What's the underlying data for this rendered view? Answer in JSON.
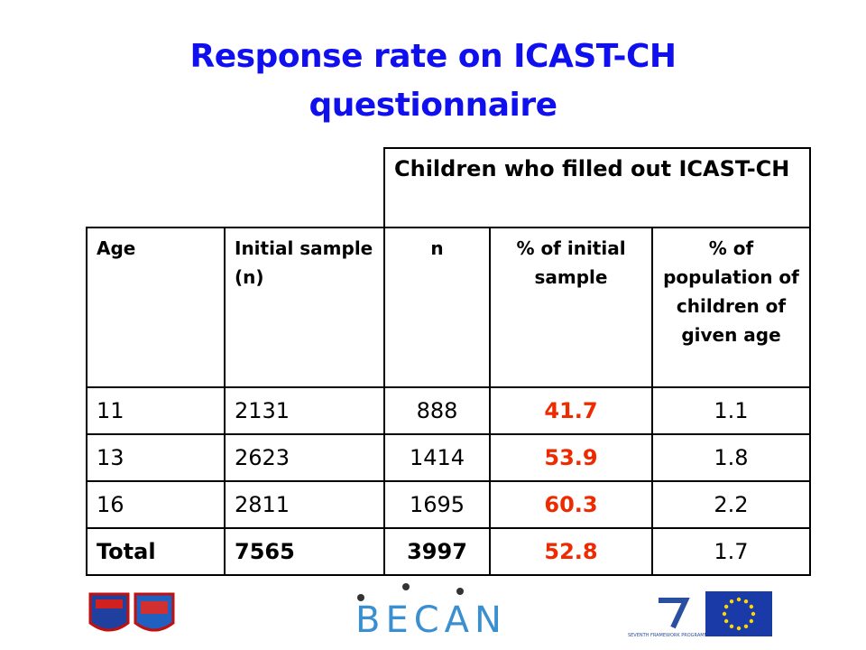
{
  "title_lines": [
    "Response rate on ICAST-CH",
    "questionnaire"
  ],
  "table": {
    "group_header": "Children who filled out ICAST-CH",
    "headers": [
      "Age",
      "Initial sample (n)",
      "n",
      "% of initial sample",
      "% of population of children of given age"
    ],
    "rows": [
      [
        "11",
        2131,
        888,
        41.7,
        1.1
      ],
      [
        "13",
        2623,
        1414,
        53.9,
        1.8
      ],
      [
        "16",
        2811,
        1695,
        60.3,
        2.2
      ],
      [
        "Total",
        7565,
        3997,
        52.8,
        1.7
      ]
    ]
  },
  "logos": {
    "becan": "BECAN",
    "fp7": "SEVENTH FRAMEWORK PROGRAMME"
  }
}
